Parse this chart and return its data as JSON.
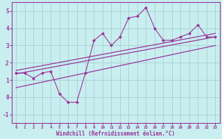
{
  "title": "",
  "xlabel": "Windchill (Refroidissement éolien,°C)",
  "ylabel": "",
  "bg_color": "#c8eef0",
  "grid_color": "#aad4d8",
  "line_color": "#993399",
  "xlim": [
    -0.5,
    23.5
  ],
  "ylim": [
    -1.5,
    5.5
  ],
  "xticks": [
    0,
    1,
    2,
    3,
    4,
    5,
    6,
    7,
    8,
    9,
    10,
    11,
    12,
    13,
    14,
    15,
    16,
    17,
    18,
    19,
    20,
    21,
    22,
    23
  ],
  "yticks": [
    -1,
    0,
    1,
    2,
    3,
    4,
    5
  ],
  "scatter_x": [
    0,
    1,
    2,
    3,
    4,
    5,
    6,
    7,
    8,
    9,
    10,
    11,
    12,
    13,
    14,
    15,
    16,
    17,
    18,
    19,
    20,
    21,
    22,
    23
  ],
  "scatter_y": [
    1.4,
    1.4,
    1.1,
    1.4,
    1.5,
    0.2,
    -0.3,
    -0.3,
    1.4,
    3.3,
    3.7,
    3.0,
    3.5,
    4.6,
    4.7,
    5.2,
    4.0,
    3.3,
    3.3,
    3.5,
    3.7,
    4.2,
    3.5,
    3.5
  ],
  "reg_lines": [
    {
      "x0": 0,
      "y0": 1.35,
      "x1": 23,
      "y1": 3.5
    },
    {
      "x0": 0,
      "y0": 1.55,
      "x1": 23,
      "y1": 3.7
    },
    {
      "x0": 0,
      "y0": 0.55,
      "x1": 23,
      "y1": 3.0
    }
  ]
}
